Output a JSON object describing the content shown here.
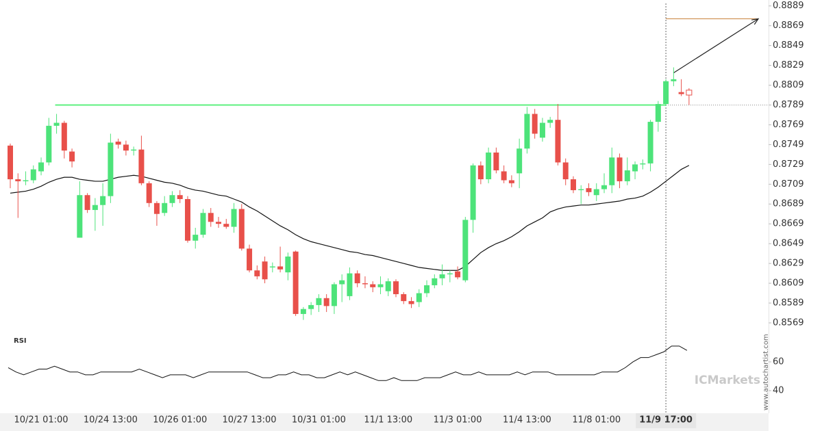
{
  "chart_data": {
    "type": "candlestick",
    "categories": [
      null,
      null,
      null,
      null,
      "10/21 01:00",
      null,
      null,
      null,
      null,
      null,
      null,
      null,
      null,
      "10/24 13:00",
      null,
      null,
      null,
      null,
      null,
      null,
      null,
      null,
      "10/26 01:00",
      null,
      null,
      null,
      null,
      null,
      null,
      null,
      null,
      "10/27 13:00",
      null,
      null,
      null,
      null,
      null,
      null,
      null,
      null,
      "10/31 01:00",
      null,
      null,
      null,
      null,
      null,
      null,
      null,
      null,
      "11/1 13:00",
      null,
      null,
      null,
      null,
      null,
      null,
      null,
      null,
      "11/3 01:00",
      null,
      null,
      null,
      null,
      null,
      null,
      null,
      null,
      "11/4 13:00",
      null,
      null,
      null,
      null,
      null,
      null,
      null,
      null,
      "11/8 01:00",
      null,
      null,
      null,
      null,
      null,
      null,
      null,
      null,
      "11/9 17:00",
      null,
      null,
      null
    ],
    "open": [
      0.8748,
      0.8714,
      0.8712,
      0.8713,
      0.8722,
      0.8731,
      0.8768,
      0.8771,
      0.8742,
      0.8655,
      0.8698,
      0.8683,
      0.8688,
      0.8697,
      0.8752,
      0.8749,
      0.8743,
      0.8744,
      0.871,
      0.869,
      0.868,
      0.869,
      0.8698,
      0.8694,
      0.8652,
      0.8658,
      0.868,
      0.8671,
      0.8669,
      0.8666,
      0.8684,
      0.8644,
      0.8622,
      0.8631,
      0.8625,
      0.8626,
      0.862,
      0.8641,
      0.8578,
      0.8583,
      0.8587,
      0.8594,
      0.8586,
      0.8608,
      0.8596,
      0.8619,
      0.8609,
      0.8608,
      0.8605,
      0.8601,
      0.8611,
      0.8598,
      0.8591,
      0.859,
      0.8599,
      0.8607,
      0.8614,
      0.8618,
      0.8621,
      0.8612,
      0.8673,
      0.8728,
      0.8714,
      0.8741,
      0.8722,
      0.8713,
      0.872,
      0.8745,
      0.878,
      0.8756,
      0.8771,
      0.8774,
      0.8731,
      0.8714,
      0.8703,
      0.8705,
      0.8698,
      0.8704,
      0.8708,
      0.8736,
      0.8712,
      0.8722,
      0.8729,
      0.873,
      0.8772,
      0.879,
      0.8813,
      0.8802,
      0.8804
    ],
    "high": [
      0.875,
      0.872,
      0.8722,
      0.8728,
      0.8736,
      0.8776,
      0.878,
      0.8773,
      0.8745,
      0.8712,
      0.87,
      0.8695,
      0.871,
      0.876,
      0.8755,
      0.8753,
      0.8747,
      0.8758,
      0.8712,
      0.8692,
      0.8697,
      0.8702,
      0.8703,
      0.8697,
      0.8665,
      0.8684,
      0.8685,
      0.8676,
      0.8674,
      0.869,
      0.8689,
      0.8648,
      0.8627,
      0.8636,
      0.863,
      0.8646,
      0.864,
      0.8642,
      0.8585,
      0.859,
      0.8598,
      0.8598,
      0.861,
      0.8618,
      0.8625,
      0.8622,
      0.8616,
      0.8611,
      0.8616,
      0.8614,
      0.8613,
      0.86,
      0.8595,
      0.8603,
      0.8612,
      0.8618,
      0.8628,
      0.8622,
      0.8626,
      0.8676,
      0.873,
      0.8732,
      0.8746,
      0.8746,
      0.8728,
      0.8718,
      0.8755,
      0.8787,
      0.8785,
      0.8776,
      0.8777,
      0.879,
      0.8735,
      0.8717,
      0.8708,
      0.871,
      0.871,
      0.872,
      0.8746,
      0.874,
      0.8736,
      0.8732,
      0.8734,
      0.8774,
      0.8793,
      0.8815,
      0.8827,
      0.8815,
      0.8806
    ],
    "low": [
      0.8705,
      0.8675,
      0.8708,
      0.871,
      0.8718,
      0.8728,
      0.876,
      0.8735,
      0.8726,
      0.8655,
      0.868,
      0.8662,
      0.8667,
      0.869,
      0.8745,
      0.8738,
      0.8738,
      0.8708,
      0.8686,
      0.8667,
      0.8677,
      0.8686,
      0.869,
      0.865,
      0.8644,
      0.8655,
      0.8666,
      0.8665,
      0.8664,
      0.866,
      0.8642,
      0.862,
      0.8613,
      0.8609,
      0.862,
      0.862,
      0.8612,
      0.8576,
      0.8572,
      0.8577,
      0.858,
      0.858,
      0.8578,
      0.859,
      0.8592,
      0.8605,
      0.8604,
      0.86,
      0.8598,
      0.8596,
      0.8595,
      0.8588,
      0.8584,
      0.8585,
      0.8595,
      0.8604,
      0.8607,
      0.861,
      0.8613,
      0.861,
      0.866,
      0.8709,
      0.871,
      0.872,
      0.871,
      0.8706,
      0.8705,
      0.874,
      0.8755,
      0.8752,
      0.8766,
      0.8728,
      0.8708,
      0.87,
      0.8689,
      0.8697,
      0.8692,
      0.87,
      0.87,
      0.8705,
      0.8708,
      0.8714,
      0.8724,
      0.8722,
      0.8762,
      0.8788,
      0.8808,
      0.8798,
      0.8789
    ],
    "close": [
      0.8714,
      0.8712,
      0.8713,
      0.8724,
      0.8731,
      0.8768,
      0.8771,
      0.8743,
      0.8732,
      0.8698,
      0.8683,
      0.8688,
      0.8697,
      0.8751,
      0.8749,
      0.8743,
      0.8744,
      0.871,
      0.869,
      0.8679,
      0.869,
      0.8698,
      0.8694,
      0.8652,
      0.8658,
      0.868,
      0.8671,
      0.8669,
      0.8666,
      0.8684,
      0.8644,
      0.8622,
      0.8616,
      0.8613,
      0.8626,
      0.8623,
      0.8636,
      0.8578,
      0.8583,
      0.8587,
      0.8594,
      0.8586,
      0.8608,
      0.8612,
      0.8619,
      0.8609,
      0.8608,
      0.8605,
      0.8608,
      0.8611,
      0.8598,
      0.8591,
      0.8588,
      0.8599,
      0.8607,
      0.8614,
      0.8618,
      0.8619,
      0.8615,
      0.8673,
      0.8728,
      0.8714,
      0.8741,
      0.8723,
      0.8713,
      0.871,
      0.8745,
      0.878,
      0.876,
      0.8771,
      0.8774,
      0.8731,
      0.8714,
      0.8703,
      0.8704,
      0.8701,
      0.8704,
      0.8708,
      0.8736,
      0.8712,
      0.8723,
      0.8729,
      0.873,
      0.8772,
      0.879,
      0.8813,
      0.8815,
      0.88,
      0.8799
    ],
    "up_color": "#4de37a",
    "down_color": "#e8504a",
    "ylim": [
      0.856,
      0.8895
    ],
    "yticks": [
      0.8889,
      0.8869,
      0.8849,
      0.8829,
      0.8809,
      0.8789,
      0.8769,
      0.8749,
      0.8729,
      0.8709,
      0.8689,
      0.8669,
      0.8649,
      0.8629,
      0.8609,
      0.8589,
      0.8569
    ],
    "moving_average": {
      "color": "#111111",
      "values": [
        0.87,
        0.8701,
        0.8702,
        0.8704,
        0.8707,
        0.8711,
        0.8714,
        0.8716,
        0.8716,
        0.8714,
        0.8713,
        0.8712,
        0.8712,
        0.8714,
        0.8716,
        0.8717,
        0.8718,
        0.8717,
        0.8715,
        0.8713,
        0.8711,
        0.871,
        0.8708,
        0.8705,
        0.8703,
        0.8702,
        0.87,
        0.8698,
        0.8697,
        0.8694,
        0.8691,
        0.8686,
        0.8682,
        0.8677,
        0.8672,
        0.8667,
        0.8663,
        0.8658,
        0.8654,
        0.8651,
        0.8649,
        0.8647,
        0.8645,
        0.8643,
        0.8641,
        0.864,
        0.8638,
        0.8637,
        0.8635,
        0.8633,
        0.8631,
        0.8629,
        0.8627,
        0.8625,
        0.8624,
        0.8623,
        0.8622,
        0.8622,
        0.8622,
        0.8626,
        0.8633,
        0.864,
        0.8645,
        0.8649,
        0.8652,
        0.8656,
        0.8661,
        0.8667,
        0.8671,
        0.8675,
        0.8681,
        0.8684,
        0.8686,
        0.8687,
        0.8688,
        0.8688,
        0.8689,
        0.869,
        0.8691,
        0.8692,
        0.8694,
        0.8695,
        0.8697,
        0.8701,
        0.8706,
        0.8712,
        0.8718,
        0.8724,
        0.8728
      ]
    },
    "level": {
      "value": 0.8789,
      "color": "#5df07f"
    },
    "target": {
      "value": 0.8876,
      "color": "#c8823c"
    },
    "rsi": {
      "label": "RSI",
      "color": "#111111",
      "ylim": [
        24.3,
        79.5
      ],
      "yticks": [
        60,
        40
      ],
      "values": [
        56,
        53,
        51,
        53,
        55,
        55,
        57,
        55,
        53,
        53,
        51,
        51,
        53,
        53,
        53,
        53,
        53,
        55,
        53,
        51,
        49,
        51,
        51,
        51,
        49,
        51,
        53,
        53,
        53,
        53,
        53,
        53,
        51,
        49,
        49,
        51,
        51,
        53,
        51,
        51,
        49,
        49,
        51,
        53,
        51,
        53,
        51,
        49,
        47,
        47,
        49,
        47,
        47,
        47,
        49,
        49,
        49,
        51,
        53,
        51,
        51,
        53,
        51,
        51,
        51,
        51,
        53,
        51,
        53,
        53,
        53,
        51,
        51,
        51,
        51,
        51,
        51,
        53,
        53,
        53,
        56,
        60,
        63,
        63,
        65,
        67,
        71,
        71,
        68
      ]
    },
    "watermarks": [
      "www.autochartist.com",
      "ICMarkets"
    ]
  }
}
